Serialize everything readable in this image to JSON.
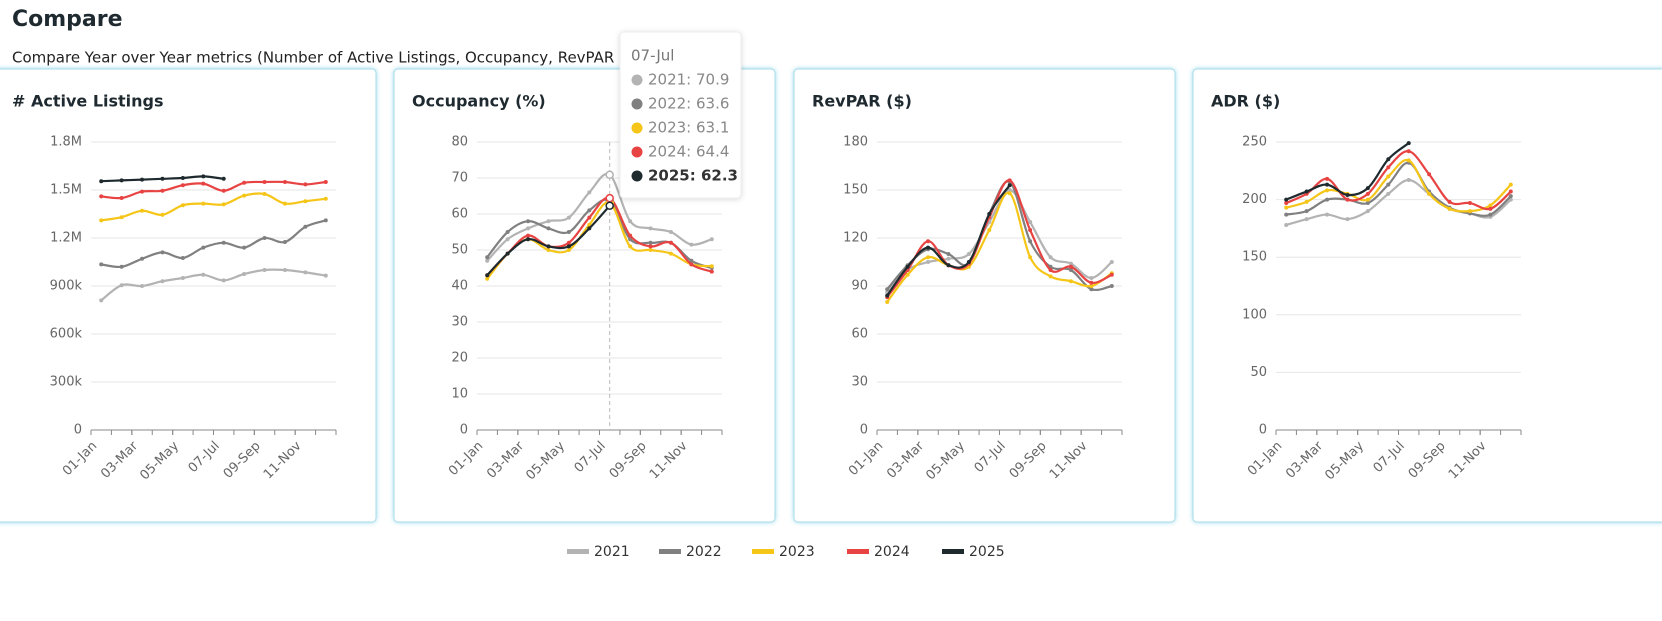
{
  "header": {
    "title": "Compare",
    "subtitle": "Compare Year over Year metrics (Number of Active Listings, Occupancy, RevPAR"
  },
  "chart_data": [
    {
      "type": "line",
      "title": "# Active Listings",
      "categories": [
        "01-Jan",
        null,
        "03-Mar",
        null,
        "05-May",
        null,
        "07-Jul",
        null,
        "09-Sep",
        null,
        "11-Nov",
        null
      ],
      "ylim": [
        0,
        1800000
      ],
      "yticks": [
        0,
        {
          "value": 300000,
          "label": "300k"
        },
        {
          "value": 600000,
          "label": "600k"
        },
        {
          "value": 900000,
          "label": "900k"
        },
        {
          "value": 1200000,
          "label": "1.2M"
        },
        {
          "value": 1500000,
          "label": "1.5M"
        },
        {
          "value": 1800000,
          "label": "1.8M"
        }
      ],
      "grid": true,
      "series": [
        {
          "name": "2021",
          "color": "#b3b3b3",
          "values": [
            810000,
            905000,
            900000,
            930000,
            950000,
            970000,
            935000,
            975000,
            1000000,
            1000000,
            985000,
            965000
          ]
        },
        {
          "name": "2022",
          "color": "#808080",
          "values": [
            1035000,
            1020000,
            1070000,
            1110000,
            1075000,
            1140000,
            1170000,
            1140000,
            1200000,
            1175000,
            1270000,
            1310000
          ]
        },
        {
          "name": "2023",
          "color": "#f5c518",
          "values": [
            1310000,
            1330000,
            1370000,
            1345000,
            1405000,
            1415000,
            1410000,
            1465000,
            1475000,
            1415000,
            1430000,
            1445000
          ]
        },
        {
          "name": "2024",
          "color": "#e84343",
          "values": [
            1460000,
            1450000,
            1490000,
            1495000,
            1530000,
            1540000,
            1495000,
            1545000,
            1550000,
            1550000,
            1535000,
            1550000
          ]
        },
        {
          "name": "2025",
          "color": "#1f2a2e",
          "values": [
            1555000,
            1560000,
            1565000,
            1570000,
            1575000,
            1585000,
            1570000,
            null,
            null,
            null,
            null,
            null
          ]
        }
      ]
    },
    {
      "type": "line",
      "title": "Occupancy (%)",
      "categories": [
        "01-Jan",
        null,
        "03-Mar",
        null,
        "05-May",
        null,
        "07-Jul",
        null,
        "09-Sep",
        null,
        "11-Nov",
        null
      ],
      "ylim": [
        0,
        80
      ],
      "yticks": [
        0,
        10,
        20,
        30,
        40,
        50,
        60,
        70,
        80
      ],
      "grid": true,
      "series": [
        {
          "name": "2021",
          "color": "#b3b3b3",
          "values": [
            47,
            53,
            56,
            58,
            59,
            66,
            70.9,
            58,
            56,
            55,
            51.5,
            53
          ]
        },
        {
          "name": "2022",
          "color": "#808080",
          "values": [
            48,
            55,
            58,
            56,
            55,
            61,
            63.6,
            53,
            52,
            52,
            47,
            45
          ]
        },
        {
          "name": "2023",
          "color": "#f5c518",
          "values": [
            42,
            49,
            53,
            50,
            50,
            57,
            63.1,
            51,
            50,
            49,
            46,
            45.5
          ]
        },
        {
          "name": "2024",
          "color": "#e84343",
          "values": [
            43,
            49,
            54,
            51,
            52,
            59,
            64.4,
            54,
            51,
            52,
            46,
            44
          ]
        },
        {
          "name": "2025",
          "color": "#1f2a2e",
          "values": [
            43,
            49,
            53,
            51,
            51,
            56,
            62.3,
            null,
            null,
            null,
            null,
            null
          ]
        }
      ]
    },
    {
      "type": "line",
      "title": "RevPAR ($)",
      "categories": [
        "01-Jan",
        null,
        "03-Mar",
        null,
        "05-May",
        null,
        "07-Jul",
        null,
        "09-Sep",
        null,
        "11-Nov",
        null
      ],
      "ylim": [
        0,
        180
      ],
      "yticks": [
        0,
        30,
        60,
        90,
        120,
        150,
        180
      ],
      "grid": true,
      "series": [
        {
          "name": "2021",
          "color": "#b3b3b3",
          "values": [
            86,
            100,
            105,
            107,
            110,
            130,
            150,
            130,
            108,
            104,
            95,
            105
          ]
        },
        {
          "name": "2022",
          "color": "#808080",
          "values": [
            88,
            103,
            113,
            110,
            104,
            135,
            155,
            118,
            102,
            100,
            88,
            90
          ]
        },
        {
          "name": "2023",
          "color": "#f5c518",
          "values": [
            80,
            97,
            108,
            103,
            102,
            125,
            148,
            108,
            96,
            93,
            90,
            98
          ]
        },
        {
          "name": "2024",
          "color": "#e84343",
          "values": [
            83,
            100,
            118,
            103,
            104,
            133,
            156,
            125,
            100,
            102,
            92,
            97
          ]
        },
        {
          "name": "2025",
          "color": "#1f2a2e",
          "values": [
            84,
            102,
            114,
            103,
            105,
            135,
            153,
            null,
            null,
            null,
            null,
            null
          ]
        }
      ]
    },
    {
      "type": "line",
      "title": "ADR ($)",
      "categories": [
        "01-Jan",
        null,
        "03-Mar",
        null,
        "05-May",
        null,
        "07-Jul",
        null,
        "09-Sep",
        null,
        "11-Nov",
        null
      ],
      "ylim": [
        0,
        250
      ],
      "yticks": [
        0,
        50,
        100,
        150,
        200,
        250
      ],
      "grid": true,
      "series": [
        {
          "name": "2021",
          "color": "#b3b3b3",
          "values": [
            178,
            183,
            187,
            183,
            190,
            205,
            217,
            205,
            192,
            188,
            185,
            200
          ]
        },
        {
          "name": "2022",
          "color": "#808080",
          "values": [
            187,
            190,
            200,
            200,
            197,
            213,
            232,
            207,
            193,
            188,
            187,
            203
          ]
        },
        {
          "name": "2023",
          "color": "#f5c518",
          "values": [
            193,
            198,
            208,
            205,
            200,
            220,
            234,
            205,
            192,
            190,
            195,
            213
          ]
        },
        {
          "name": "2024",
          "color": "#e84343",
          "values": [
            197,
            205,
            218,
            200,
            205,
            228,
            242,
            222,
            198,
            197,
            192,
            207
          ]
        },
        {
          "name": "2025",
          "color": "#1f2a2e",
          "values": [
            200,
            207,
            213,
            204,
            210,
            235,
            249,
            null,
            null,
            null,
            null,
            null
          ]
        }
      ]
    }
  ],
  "tooltip": {
    "title": "07-Jul",
    "rows": [
      "2021: 70.9",
      "2022: 63.6",
      "2023: 63.1",
      "2024: 64.4",
      "2025: 62.3"
    ]
  }
}
